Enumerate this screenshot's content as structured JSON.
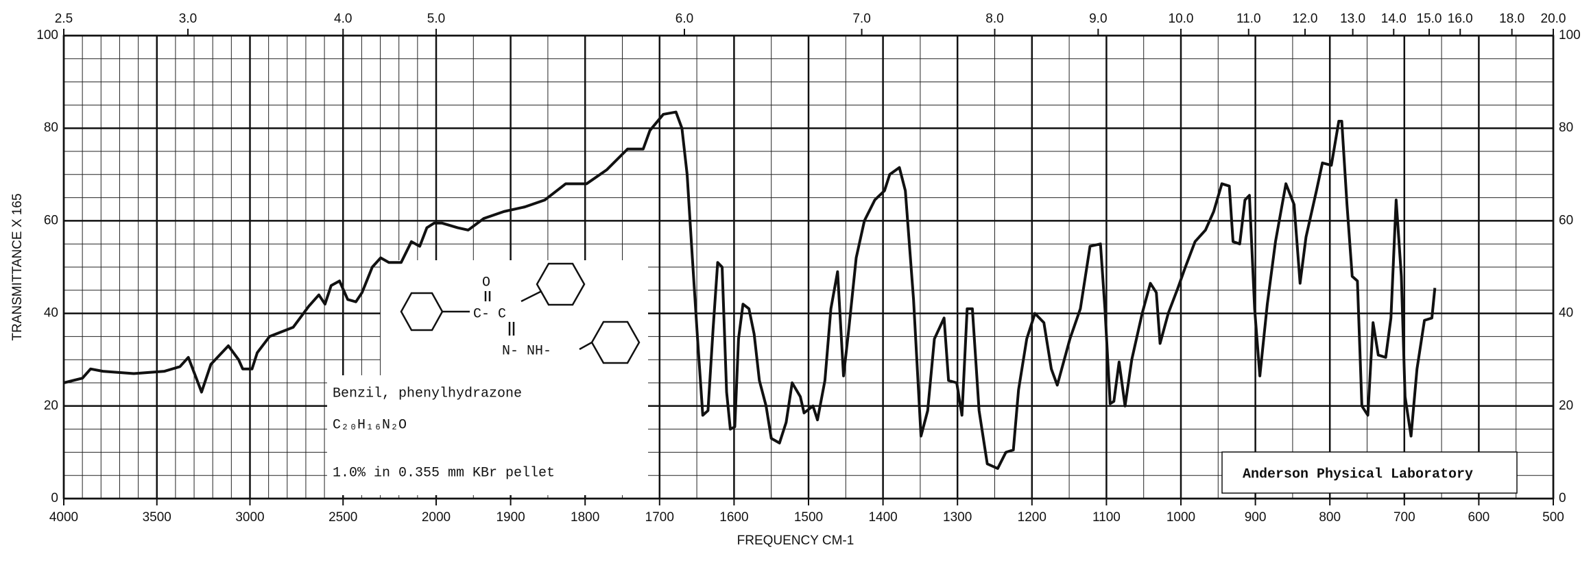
{
  "chart_data": {
    "type": "line",
    "ylabel": "TRANSMITTANCE X 165",
    "xlabel": "FREQUENCY  CM-1",
    "annotations": {
      "compound": "Benzil, phenylhydrazone",
      "formula": "C₂₀H₁₆N₂O",
      "conditions": "1.0% in 0.355 mm   KBr pellet",
      "lab": "Anderson Physical Laboratory",
      "structure_labels": [
        "O",
        "C- C",
        "N- NH-"
      ]
    },
    "x_scale": "piecewise",
    "xlim": [
      4000,
      500
    ],
    "xticks": [
      4000,
      3500,
      3000,
      2500,
      2000,
      1900,
      1800,
      1700,
      1600,
      1500,
      1400,
      1300,
      1200,
      1100,
      1000,
      900,
      800,
      700,
      600,
      500
    ],
    "xminorticks": [
      3900,
      3800,
      3700,
      3600,
      3400,
      3300,
      3200,
      3100,
      2900,
      2800,
      2700,
      2600,
      2400,
      2300,
      2200,
      2100,
      1950,
      1850,
      1750,
      1650,
      1550,
      1450,
      1350,
      1250,
      1150,
      1050,
      950,
      850,
      750,
      650,
      550
    ],
    "top_ticks": [
      {
        "value": 2.5,
        "label": "2.5"
      },
      {
        "value": 3,
        "label": "3.0"
      },
      {
        "value": 4,
        "label": "4.0"
      },
      {
        "value": 5,
        "label": "5.0"
      },
      {
        "value": 6,
        "label": "6.0"
      },
      {
        "value": 7,
        "label": "7.0"
      },
      {
        "value": 8,
        "label": "8.0"
      },
      {
        "value": 9,
        "label": "9.0"
      },
      {
        "value": 10,
        "label": "10.0"
      },
      {
        "value": 11,
        "label": "11.0"
      },
      {
        "value": 12,
        "label": "12.0"
      },
      {
        "value": 13,
        "label": "13.0"
      },
      {
        "value": 14,
        "label": "14.0"
      },
      {
        "value": 15,
        "label": "15.0"
      },
      {
        "value": 16,
        "label": "16.0"
      },
      {
        "value": 18,
        "label": "18.0"
      },
      {
        "value": 20,
        "label": "20.0"
      }
    ],
    "ylim": [
      0,
      100
    ],
    "yticks": [
      0,
      20,
      40,
      60,
      80,
      100
    ],
    "yminorticks": [
      5,
      10,
      15,
      25,
      30,
      35,
      45,
      50,
      55,
      65,
      70,
      75,
      85,
      90,
      95
    ],
    "grid": true,
    "color": "#111111",
    "x": [
      4000,
      3900,
      3856,
      3790,
      3624,
      3459,
      3376,
      3331,
      3293,
      3260,
      3210,
      3116,
      3061,
      3039,
      2989,
      2961,
      2895,
      2768,
      2685,
      2630,
      2597,
      2564,
      2519,
      2475,
      2431,
      2398,
      2343,
      2298,
      2254,
      2188,
      2133,
      2088,
      2050,
      2011,
      1992,
      1971,
      1957,
      1936,
      1909,
      1881,
      1854,
      1826,
      1798,
      1771,
      1743,
      1722,
      1713,
      1695,
      1678,
      1670,
      1663,
      1656,
      1649,
      1642,
      1635,
      1628,
      1622,
      1616,
      1610,
      1605,
      1599,
      1594,
      1588,
      1580,
      1573,
      1566,
      1557,
      1550,
      1539,
      1530,
      1522,
      1511,
      1506,
      1494,
      1488,
      1478,
      1470,
      1461,
      1453,
      1446,
      1436,
      1425,
      1411,
      1398,
      1391,
      1378,
      1370,
      1359,
      1349,
      1340,
      1331,
      1318,
      1312,
      1301,
      1294,
      1287,
      1280,
      1271,
      1260,
      1246,
      1235,
      1225,
      1218,
      1207,
      1196,
      1184,
      1174,
      1166,
      1149,
      1135,
      1122,
      1108,
      1102,
      1095,
      1090,
      1083,
      1075,
      1066,
      1052,
      1041,
      1033,
      1028,
      1017,
      1004,
      994,
      981,
      967,
      956,
      945,
      935,
      930,
      921,
      914,
      908,
      901,
      894,
      884,
      873,
      859,
      848,
      840,
      832,
      818,
      810,
      798,
      788,
      784,
      777,
      770,
      763,
      757,
      749,
      742,
      735,
      725,
      718,
      711,
      704,
      699,
      691,
      683,
      673,
      663,
      659
    ],
    "values": [
      25,
      26,
      28,
      27.5,
      27,
      27.5,
      28.5,
      30.5,
      26.5,
      23,
      29,
      33,
      30,
      28,
      28,
      31.5,
      35,
      37,
      41.5,
      44,
      42,
      46,
      47,
      43,
      42.5,
      44.5,
      50,
      52,
      51,
      51,
      55.5,
      54.5,
      58.5,
      59.5,
      59.5,
      58.5,
      58,
      60.5,
      62,
      63,
      64.5,
      68,
      68,
      71,
      75.5,
      75.5,
      79.5,
      83,
      83.5,
      80,
      70,
      52,
      34.5,
      18,
      19,
      37,
      51,
      50,
      23,
      15,
      15.5,
      34.5,
      42,
      41,
      35.5,
      25.5,
      20,
      13,
      12,
      16.5,
      25,
      22,
      18.5,
      20,
      17,
      25.5,
      41,
      49,
      26.5,
      36.5,
      52,
      60,
      64.5,
      66.5,
      70,
      71.5,
      66.5,
      43,
      13.5,
      19,
      34.5,
      39,
      25.5,
      25,
      18,
      41,
      41,
      19,
      7.5,
      6.5,
      10,
      10.5,
      23.5,
      34.5,
      40,
      38,
      28,
      24.5,
      34.5,
      41,
      54.5,
      55,
      41,
      20.5,
      21,
      29.5,
      20,
      30,
      40,
      46.5,
      44.5,
      33.5,
      40,
      45.5,
      50,
      55.5,
      58,
      62,
      68,
      67.5,
      55.5,
      55,
      64.5,
      65.5,
      41,
      26.5,
      42,
      55.5,
      68,
      63.5,
      46.5,
      56.5,
      66.5,
      72.5,
      72,
      81.5,
      81.5,
      63.5,
      48,
      47,
      20,
      18,
      38,
      31,
      30.5,
      39,
      64.5,
      48,
      22,
      13.5,
      28,
      38.5,
      39,
      45.5
    ]
  }
}
